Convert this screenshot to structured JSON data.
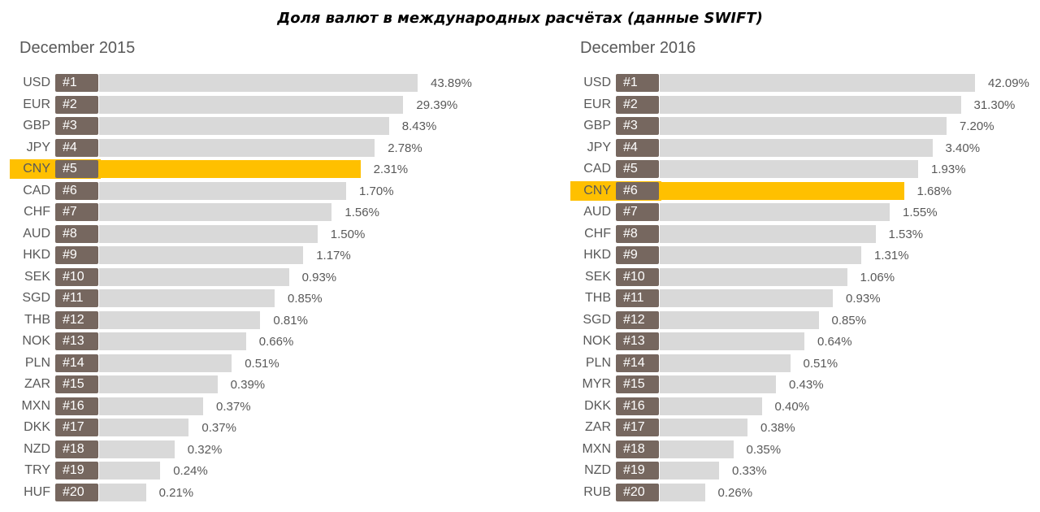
{
  "title": "Доля валют в международных расчётах (данные SWIFT)",
  "colors": {
    "bar": "#d9d9d9",
    "highlight": "#ffc000",
    "rank_badge": "#76675f",
    "text": "#595959"
  },
  "chart_data": [
    {
      "type": "bar",
      "orientation": "horizontal",
      "subtitle": "December 2015",
      "highlight": "CNY",
      "unit": "%",
      "categories": [
        "USD",
        "EUR",
        "GBP",
        "JPY",
        "CNY",
        "CAD",
        "CHF",
        "AUD",
        "HKD",
        "SEK",
        "SGD",
        "THB",
        "NOK",
        "PLN",
        "ZAR",
        "MXN",
        "DKK",
        "NZD",
        "TRY",
        "HUF"
      ],
      "ranks": [
        "#1",
        "#2",
        "#3",
        "#4",
        "#5",
        "#6",
        "#7",
        "#8",
        "#9",
        "#10",
        "#11",
        "#12",
        "#13",
        "#14",
        "#15",
        "#16",
        "#17",
        "#18",
        "#19",
        "#20"
      ],
      "values": [
        43.89,
        29.39,
        8.43,
        2.78,
        2.31,
        1.7,
        1.56,
        1.5,
        1.17,
        0.93,
        0.85,
        0.81,
        0.66,
        0.51,
        0.39,
        0.37,
        0.37,
        0.32,
        0.24,
        0.21
      ],
      "value_labels": [
        "43.89%",
        "29.39%",
        "8.43%",
        "2.78%",
        "2.31%",
        "1.70%",
        "1.56%",
        "1.50%",
        "1.17%",
        "0.93%",
        "0.85%",
        "0.81%",
        "0.66%",
        "0.51%",
        "0.39%",
        "0.37%",
        "0.37%",
        "0.32%",
        "0.24%",
        "0.21%"
      ]
    },
    {
      "type": "bar",
      "orientation": "horizontal",
      "subtitle": "December 2016",
      "highlight": "CNY",
      "unit": "%",
      "categories": [
        "USD",
        "EUR",
        "GBP",
        "JPY",
        "CAD",
        "CNY",
        "AUD",
        "CHF",
        "HKD",
        "SEK",
        "THB",
        "SGD",
        "NOK",
        "PLN",
        "MYR",
        "DKK",
        "ZAR",
        "MXN",
        "NZD",
        "RUB"
      ],
      "ranks": [
        "#1",
        "#2",
        "#3",
        "#4",
        "#5",
        "#6",
        "#7",
        "#8",
        "#9",
        "#10",
        "#11",
        "#12",
        "#13",
        "#14",
        "#15",
        "#16",
        "#17",
        "#18",
        "#19",
        "#20"
      ],
      "values": [
        42.09,
        31.3,
        7.2,
        3.4,
        1.93,
        1.68,
        1.55,
        1.53,
        1.31,
        1.06,
        0.93,
        0.85,
        0.64,
        0.51,
        0.43,
        0.4,
        0.38,
        0.35,
        0.33,
        0.26
      ],
      "value_labels": [
        "42.09%",
        "31.30%",
        "7.20%",
        "3.40%",
        "1.93%",
        "1.68%",
        "1.55%",
        "1.53%",
        "1.31%",
        "1.06%",
        "0.93%",
        "0.85%",
        "0.64%",
        "0.51%",
        "0.43%",
        "0.40%",
        "0.38%",
        "0.35%",
        "0.33%",
        "0.26%"
      ]
    }
  ]
}
